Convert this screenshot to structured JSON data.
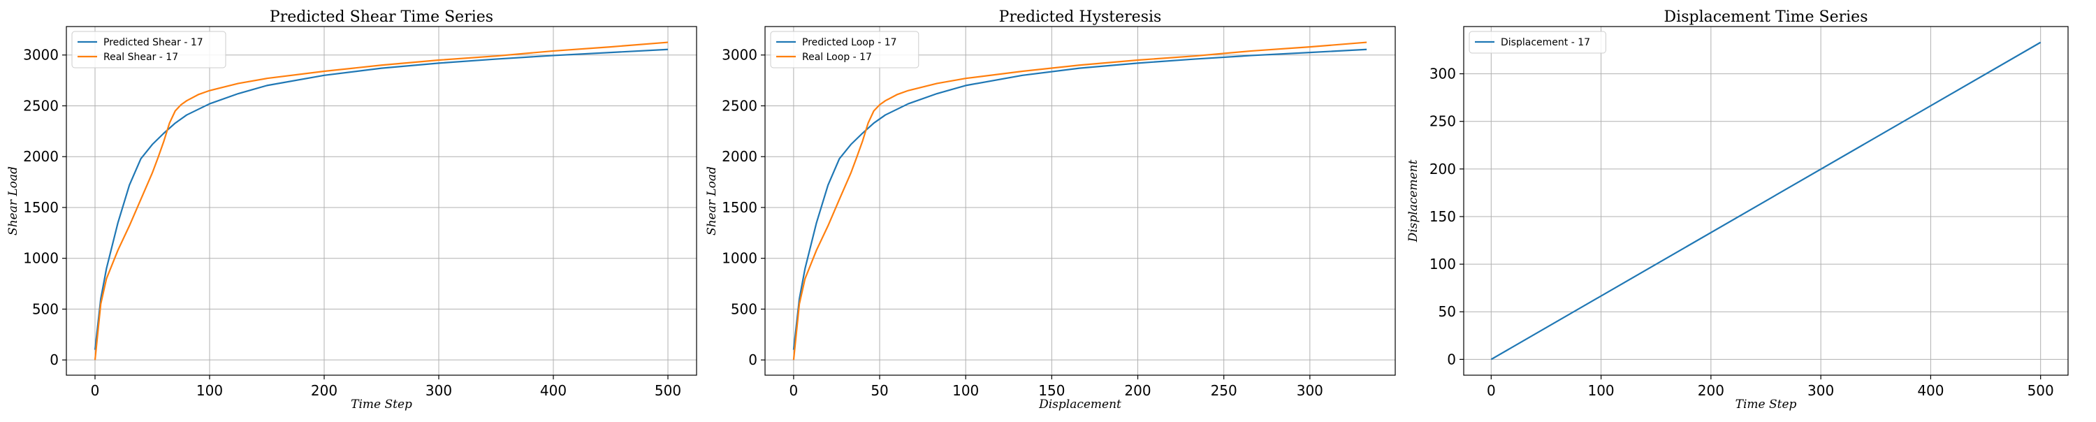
{
  "chart_data": [
    {
      "type": "line",
      "title": "Predicted Shear Time Series",
      "xlabel": "Time Step",
      "ylabel": "Shear Load",
      "xlim": [
        -25,
        525
      ],
      "ylim": [
        -150,
        3280
      ],
      "xticks": [
        0,
        100,
        200,
        300,
        400,
        500
      ],
      "yticks": [
        0,
        500,
        1000,
        1500,
        2000,
        2500,
        3000
      ],
      "grid": true,
      "legend_position": "top-left",
      "series": [
        {
          "name": "Predicted Shear - 17",
          "color": "#1f77b4",
          "x": [
            0,
            5,
            10,
            20,
            30,
            40,
            50,
            60,
            70,
            80,
            100,
            125,
            150,
            200,
            250,
            300,
            350,
            400,
            450,
            500
          ],
          "y": [
            100,
            600,
            900,
            1350,
            1720,
            1980,
            2120,
            2230,
            2330,
            2410,
            2520,
            2620,
            2700,
            2800,
            2870,
            2920,
            2960,
            2995,
            3025,
            3055
          ]
        },
        {
          "name": "Real Shear - 17",
          "color": "#ff7f0e",
          "x": [
            0,
            5,
            10,
            20,
            30,
            40,
            50,
            55,
            60,
            65,
            70,
            75,
            80,
            90,
            100,
            125,
            150,
            200,
            250,
            300,
            350,
            400,
            450,
            500
          ],
          "y": [
            0,
            550,
            800,
            1080,
            1320,
            1580,
            1840,
            1990,
            2150,
            2330,
            2450,
            2510,
            2550,
            2610,
            2650,
            2720,
            2770,
            2840,
            2900,
            2950,
            2990,
            3040,
            3080,
            3125
          ]
        }
      ]
    },
    {
      "type": "line",
      "title": "Predicted Hysteresis",
      "xlabel": "Displacement",
      "ylabel": "Shear Load",
      "xlim": [
        -16.6,
        349.6
      ],
      "ylim": [
        -150,
        3280
      ],
      "xticks": [
        0,
        50,
        100,
        150,
        200,
        250,
        300
      ],
      "yticks": [
        0,
        500,
        1000,
        1500,
        2000,
        2500,
        3000
      ],
      "grid": true,
      "legend_position": "top-left",
      "series": [
        {
          "name": "Predicted Loop - 17",
          "color": "#1f77b4",
          "x": [
            0,
            3.33,
            6.66,
            13.3,
            20,
            26.6,
            33.3,
            40,
            46.6,
            53.3,
            66.6,
            83.3,
            100,
            133,
            166,
            200,
            233,
            266,
            300,
            333
          ],
          "y": [
            100,
            600,
            900,
            1350,
            1720,
            1980,
            2120,
            2230,
            2330,
            2410,
            2520,
            2620,
            2700,
            2800,
            2870,
            2920,
            2960,
            2995,
            3025,
            3055
          ]
        },
        {
          "name": "Real Loop - 17",
          "color": "#ff7f0e",
          "x": [
            0,
            3.33,
            6.66,
            13.3,
            20,
            26.6,
            33.3,
            36.6,
            40,
            43.3,
            46.6,
            50,
            53.3,
            60,
            66.6,
            83.3,
            100,
            133,
            166,
            200,
            233,
            266,
            300,
            333
          ],
          "y": [
            0,
            550,
            800,
            1080,
            1320,
            1580,
            1840,
            1990,
            2150,
            2330,
            2450,
            2510,
            2550,
            2610,
            2650,
            2720,
            2770,
            2840,
            2900,
            2950,
            2990,
            3040,
            3080,
            3125
          ]
        }
      ]
    },
    {
      "type": "line",
      "title": "Displacement Time Series",
      "xlabel": "Time Step",
      "ylabel": "Displacement",
      "xlim": [
        -25,
        525
      ],
      "ylim": [
        -16.6,
        349.6
      ],
      "xticks": [
        0,
        100,
        200,
        300,
        400,
        500
      ],
      "yticks": [
        0,
        50,
        100,
        150,
        200,
        250,
        300
      ],
      "grid": true,
      "legend_position": "top-left",
      "series": [
        {
          "name": "Displacement - 17",
          "color": "#1f77b4",
          "x": [
            0,
            500
          ],
          "y": [
            0,
            333
          ]
        }
      ]
    }
  ]
}
